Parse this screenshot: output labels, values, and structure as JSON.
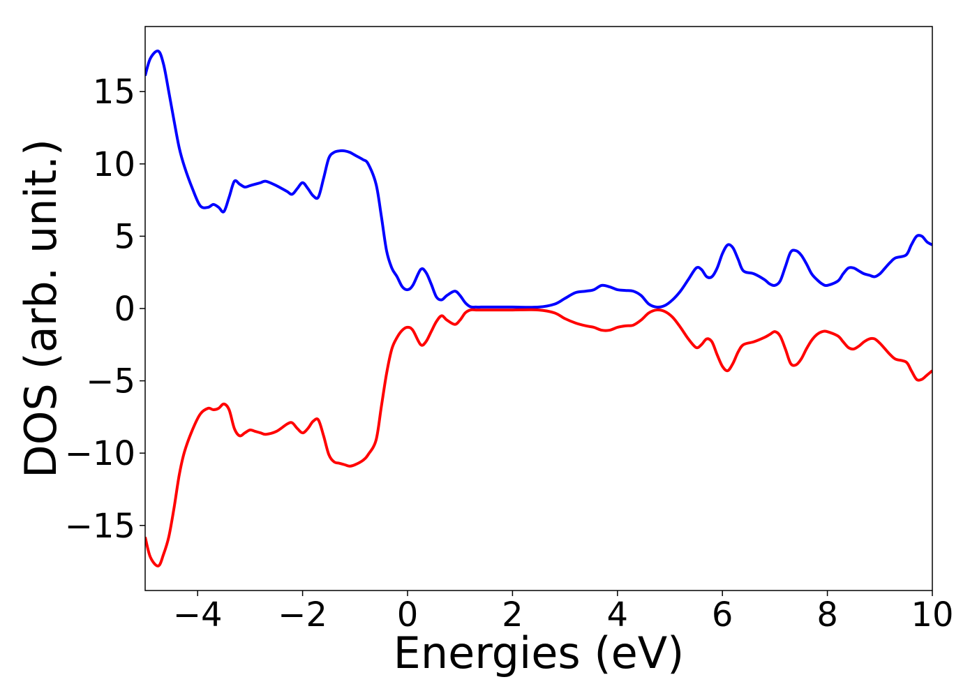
{
  "chart_data": {
    "type": "line",
    "title": "",
    "xlabel": "Energies (eV)",
    "ylabel": "DOS (arb. unit.)",
    "xlim": [
      -5,
      10
    ],
    "ylim": [
      -19.5,
      19.5
    ],
    "x_ticks": [
      -4,
      -2,
      0,
      2,
      4,
      6,
      8,
      10
    ],
    "x_tick_labels": [
      "−4",
      "−2",
      "0",
      "2",
      "4",
      "6",
      "8",
      "10"
    ],
    "y_ticks": [
      -15,
      -10,
      -5,
      0,
      5,
      10,
      15
    ],
    "y_tick_labels": [
      "−15",
      "−10",
      "−5",
      "0",
      "5",
      "10",
      "15"
    ],
    "grid": false,
    "series": [
      {
        "color": "#0000ff",
        "x": [
          -5.0,
          -4.9,
          -4.75,
          -4.65,
          -4.55,
          -4.45,
          -4.35,
          -4.25,
          -4.1,
          -3.95,
          -3.8,
          -3.7,
          -3.6,
          -3.5,
          -3.4,
          -3.3,
          -3.2,
          -3.1,
          -3.0,
          -2.9,
          -2.8,
          -2.7,
          -2.5,
          -2.3,
          -2.2,
          -2.1,
          -2.0,
          -1.9,
          -1.8,
          -1.7,
          -1.6,
          -1.5,
          -1.4,
          -1.3,
          -1.2,
          -1.1,
          -1.0,
          -0.85,
          -0.75,
          -0.6,
          -0.5,
          -0.4,
          -0.3,
          -0.2,
          -0.1,
          0.0,
          0.1,
          0.25,
          0.35,
          0.45,
          0.55,
          0.65,
          0.75,
          0.9,
          1.0,
          1.1,
          1.2,
          1.3,
          1.4,
          1.5,
          1.7,
          2.0,
          2.5,
          2.8,
          3.0,
          3.2,
          3.4,
          3.55,
          3.7,
          3.85,
          4.0,
          4.15,
          4.3,
          4.45,
          4.6,
          4.75,
          4.9,
          5.05,
          5.2,
          5.35,
          5.5,
          5.6,
          5.7,
          5.8,
          5.9,
          6.0,
          6.1,
          6.2,
          6.3,
          6.4,
          6.6,
          6.8,
          6.9,
          7.0,
          7.1,
          7.2,
          7.3,
          7.4,
          7.5,
          7.6,
          7.7,
          7.8,
          7.9,
          8.0,
          8.2,
          8.3,
          8.4,
          8.5,
          8.6,
          8.7,
          8.8,
          8.9,
          9.0,
          9.1,
          9.2,
          9.3,
          9.5,
          9.6,
          9.7,
          9.8,
          9.9,
          10.0
        ],
        "values": [
          16.1,
          17.3,
          17.8,
          16.9,
          15.0,
          13.0,
          11.1,
          9.8,
          8.3,
          7.1,
          7.0,
          7.2,
          7.0,
          6.7,
          7.7,
          8.8,
          8.6,
          8.4,
          8.5,
          8.6,
          8.7,
          8.8,
          8.5,
          8.1,
          7.9,
          8.3,
          8.7,
          8.3,
          7.8,
          7.7,
          9.0,
          10.4,
          10.8,
          10.9,
          10.9,
          10.8,
          10.6,
          10.3,
          10.0,
          8.6,
          6.4,
          4.0,
          2.8,
          2.2,
          1.5,
          1.3,
          1.6,
          2.7,
          2.5,
          1.7,
          0.8,
          0.6,
          0.9,
          1.2,
          0.9,
          0.4,
          0.12,
          0.1,
          0.1,
          0.1,
          0.1,
          0.1,
          0.1,
          0.3,
          0.7,
          1.1,
          1.2,
          1.3,
          1.6,
          1.5,
          1.3,
          1.25,
          1.2,
          0.9,
          0.3,
          0.1,
          0.2,
          0.6,
          1.2,
          2.0,
          2.8,
          2.7,
          2.2,
          2.2,
          2.8,
          3.8,
          4.4,
          4.2,
          3.4,
          2.6,
          2.4,
          2.0,
          1.7,
          1.6,
          1.9,
          2.9,
          3.9,
          4.0,
          3.7,
          3.1,
          2.4,
          2.0,
          1.7,
          1.6,
          1.9,
          2.4,
          2.8,
          2.8,
          2.6,
          2.4,
          2.3,
          2.2,
          2.4,
          2.8,
          3.2,
          3.5,
          3.7,
          4.4,
          5.0,
          5.0,
          4.6,
          4.4
        ]
      },
      {
        "color": "#ff0000",
        "x": [
          -5.0,
          -4.9,
          -4.75,
          -4.65,
          -4.55,
          -4.45,
          -4.35,
          -4.25,
          -4.1,
          -3.95,
          -3.8,
          -3.7,
          -3.6,
          -3.5,
          -3.4,
          -3.3,
          -3.2,
          -3.1,
          -3.0,
          -2.9,
          -2.8,
          -2.7,
          -2.5,
          -2.3,
          -2.2,
          -2.1,
          -2.0,
          -1.9,
          -1.8,
          -1.7,
          -1.6,
          -1.5,
          -1.4,
          -1.3,
          -1.2,
          -1.1,
          -1.0,
          -0.85,
          -0.75,
          -0.6,
          -0.5,
          -0.4,
          -0.3,
          -0.2,
          -0.1,
          0.0,
          0.1,
          0.25,
          0.35,
          0.45,
          0.55,
          0.65,
          0.75,
          0.9,
          1.0,
          1.1,
          1.2,
          1.3,
          1.4,
          1.5,
          1.7,
          2.0,
          2.5,
          2.8,
          3.0,
          3.2,
          3.4,
          3.55,
          3.7,
          3.85,
          4.0,
          4.15,
          4.3,
          4.45,
          4.6,
          4.75,
          4.9,
          5.05,
          5.2,
          5.35,
          5.5,
          5.6,
          5.7,
          5.8,
          5.9,
          6.0,
          6.1,
          6.2,
          6.3,
          6.4,
          6.6,
          6.8,
          6.9,
          7.0,
          7.1,
          7.2,
          7.3,
          7.4,
          7.5,
          7.6,
          7.7,
          7.8,
          7.9,
          8.0,
          8.2,
          8.3,
          8.4,
          8.5,
          8.6,
          8.7,
          8.8,
          8.9,
          9.0,
          9.1,
          9.2,
          9.3,
          9.5,
          9.6,
          9.7,
          9.8,
          9.9,
          10.0
        ],
        "values": [
          -15.8,
          -17.2,
          -17.8,
          -17.0,
          -15.8,
          -13.8,
          -11.5,
          -9.9,
          -8.4,
          -7.3,
          -6.9,
          -7.0,
          -6.9,
          -6.6,
          -7.0,
          -8.3,
          -8.8,
          -8.6,
          -8.4,
          -8.5,
          -8.6,
          -8.7,
          -8.5,
          -8.0,
          -7.9,
          -8.3,
          -8.6,
          -8.3,
          -7.8,
          -7.7,
          -8.8,
          -10.1,
          -10.6,
          -10.7,
          -10.8,
          -10.9,
          -10.8,
          -10.5,
          -10.1,
          -9.1,
          -6.8,
          -4.5,
          -2.8,
          -2.0,
          -1.5,
          -1.3,
          -1.5,
          -2.5,
          -2.3,
          -1.6,
          -0.9,
          -0.5,
          -0.8,
          -1.1,
          -0.8,
          -0.3,
          -0.1,
          -0.1,
          -0.1,
          -0.1,
          -0.1,
          -0.1,
          -0.1,
          -0.3,
          -0.7,
          -1.0,
          -1.2,
          -1.3,
          -1.5,
          -1.5,
          -1.3,
          -1.2,
          -1.15,
          -0.8,
          -0.3,
          -0.1,
          -0.2,
          -0.6,
          -1.3,
          -2.1,
          -2.7,
          -2.5,
          -2.1,
          -2.3,
          -3.2,
          -4.0,
          -4.3,
          -3.8,
          -3.0,
          -2.5,
          -2.3,
          -2.0,
          -1.8,
          -1.6,
          -1.9,
          -2.8,
          -3.8,
          -3.9,
          -3.5,
          -2.8,
          -2.2,
          -1.8,
          -1.6,
          -1.6,
          -1.9,
          -2.3,
          -2.7,
          -2.8,
          -2.6,
          -2.3,
          -2.1,
          -2.1,
          -2.4,
          -2.8,
          -3.2,
          -3.5,
          -3.7,
          -4.3,
          -4.9,
          -4.9,
          -4.6,
          -4.3
        ]
      }
    ]
  }
}
